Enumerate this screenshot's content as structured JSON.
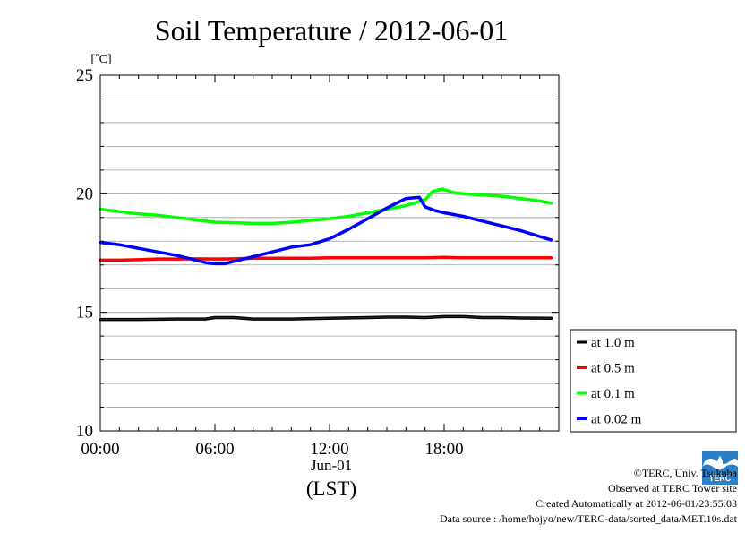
{
  "chart_data": {
    "type": "line",
    "title": "Soil Temperature / 2012-06-01",
    "ylabel": "[˚C]",
    "xlabel": "(LST)",
    "x_date_label": "Jun-01",
    "ylim": [
      10,
      25
    ],
    "y_ticks": [
      "10",
      "15",
      "20",
      "25"
    ],
    "x_ticks": [
      "00:00",
      "06:00",
      "12:00",
      "18:00"
    ],
    "x_tick_hours": [
      0,
      6,
      12,
      18
    ],
    "xlim_hours": [
      0,
      24
    ],
    "grid": true,
    "legend_position": "bottom-right",
    "series": [
      {
        "name": "at 1.0 m",
        "color": "#000000",
        "x": [
          0,
          2,
          4,
          5.5,
          6,
          7,
          8,
          10,
          12,
          14,
          15,
          16,
          17,
          18,
          19,
          20,
          21,
          22,
          23.6
        ],
        "y": [
          14.7,
          14.7,
          14.72,
          14.72,
          14.78,
          14.78,
          14.72,
          14.72,
          14.75,
          14.78,
          14.8,
          14.8,
          14.78,
          14.82,
          14.82,
          14.78,
          14.78,
          14.76,
          14.75
        ]
      },
      {
        "name": "at 0.5 m",
        "color": "#ff0000",
        "x": [
          0,
          1,
          2,
          3,
          4,
          5,
          6,
          7,
          8,
          9,
          10,
          11,
          12,
          13,
          14,
          15,
          16,
          17,
          18,
          19,
          20,
          21,
          22,
          23,
          23.6
        ],
        "y": [
          17.2,
          17.2,
          17.22,
          17.25,
          17.25,
          17.26,
          17.25,
          17.26,
          17.28,
          17.28,
          17.28,
          17.28,
          17.3,
          17.3,
          17.3,
          17.3,
          17.3,
          17.3,
          17.32,
          17.3,
          17.3,
          17.3,
          17.3,
          17.3,
          17.3
        ]
      },
      {
        "name": "at 0.1 m",
        "color": "#00ff00",
        "x": [
          0,
          1,
          2,
          3,
          4,
          5,
          6,
          7,
          8,
          9,
          10,
          11,
          12,
          13,
          14,
          15,
          16,
          17,
          17.4,
          17.9,
          18.5,
          19,
          20,
          21,
          22,
          23,
          23.6
        ],
        "y": [
          19.35,
          19.25,
          19.15,
          19.1,
          19.0,
          18.9,
          18.8,
          18.78,
          18.75,
          18.75,
          18.8,
          18.88,
          18.95,
          19.05,
          19.2,
          19.35,
          19.5,
          19.75,
          20.1,
          20.2,
          20.05,
          20.0,
          19.95,
          19.9,
          19.8,
          19.7,
          19.6
        ]
      },
      {
        "name": "at 0.02 m",
        "color": "#0000ff",
        "x": [
          0,
          1,
          2,
          3,
          4,
          5,
          5.5,
          6,
          6.5,
          7,
          8,
          9,
          10,
          11,
          12,
          13,
          14,
          15,
          16,
          16.7,
          17,
          17.5,
          18,
          19,
          20,
          21,
          22,
          23,
          23.6
        ],
        "y": [
          17.95,
          17.85,
          17.7,
          17.55,
          17.4,
          17.2,
          17.1,
          17.05,
          17.05,
          17.15,
          17.35,
          17.55,
          17.75,
          17.85,
          18.1,
          18.5,
          18.95,
          19.4,
          19.8,
          19.85,
          19.45,
          19.3,
          19.2,
          19.05,
          18.85,
          18.65,
          18.45,
          18.2,
          18.05
        ]
      }
    ]
  },
  "footer": {
    "copyright": "©TERC, Univ. Tsukuba",
    "observed": "Observed at TERC Tower site",
    "created": "Created Automatically at 2012-06-01/23:55:03",
    "source": "Data source : /home/hojyo/new/TERC-data/sorted_data/MET.10s.dat"
  },
  "logo": {
    "text": "TERC",
    "color": "#2a7fc8"
  }
}
